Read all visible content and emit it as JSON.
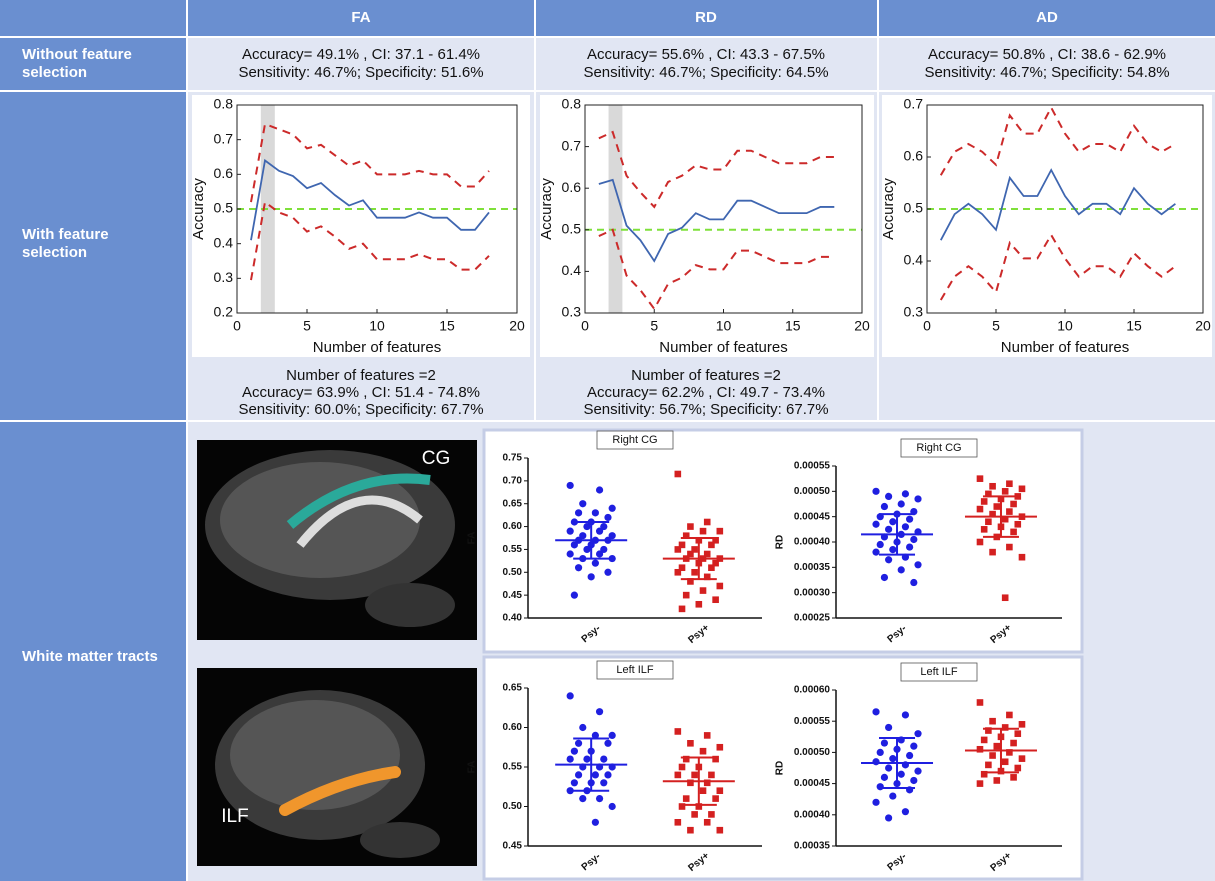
{
  "table": {
    "headers": [
      "FA",
      "RD",
      "AD"
    ],
    "row_labels": [
      "Without feature selection",
      "With feature selection",
      "White matter tracts"
    ],
    "without_selection": [
      [
        "Accuracy= 49.1% , CI: 37.1 - 61.4%",
        "Sensitivity: 46.7%; Specificity: 51.6%"
      ],
      [
        "Accuracy= 55.6% , CI: 43.3 - 67.5%",
        "Sensitivity: 46.7%; Specificity: 64.5%"
      ],
      [
        "Accuracy= 50.8% , CI: 38.6 - 62.9%",
        "Sensitivity: 46.7%; Specificity: 54.8%"
      ]
    ],
    "with_selection_notes": [
      [
        "Number of features =2",
        "Accuracy= 63.9% , CI: 51.4 - 74.8%",
        "Sensitivity: 60.0%; Specificity: 67.7%"
      ],
      [
        "Number of features =2",
        "Accuracy= 62.2% , CI: 49.7 - 73.4%",
        "Sensitivity: 56.7%; Specificity: 67.7%"
      ]
    ]
  },
  "line_charts": [
    {
      "type": "line",
      "xlabel": "Number of features",
      "ylabel": "Accuracy",
      "xlim": [
        0,
        20
      ],
      "ylim": [
        0.2,
        0.8
      ],
      "xticks": [
        0,
        5,
        10,
        15,
        20
      ],
      "yticks": [
        0.2,
        0.3,
        0.4,
        0.5,
        0.6,
        0.7,
        0.8
      ],
      "x": [
        1,
        2,
        3,
        4,
        5,
        6,
        7,
        8,
        9,
        10,
        11,
        12,
        13,
        14,
        15,
        16,
        17,
        18
      ],
      "reference_line": 0.5,
      "reference_color": "#7fe03a",
      "shade": [
        1.7,
        2.7
      ],
      "series": [
        {
          "color": "#3f66b0",
          "dashed": false,
          "values": [
            0.41,
            0.64,
            0.61,
            0.595,
            0.56,
            0.575,
            0.54,
            0.51,
            0.525,
            0.475,
            0.475,
            0.475,
            0.49,
            0.475,
            0.475,
            0.44,
            0.44,
            0.49
          ]
        },
        {
          "color": "#cc2a2a",
          "dashed": true,
          "values": [
            0.52,
            0.745,
            0.73,
            0.715,
            0.675,
            0.685,
            0.655,
            0.625,
            0.64,
            0.6,
            0.6,
            0.6,
            0.61,
            0.6,
            0.6,
            0.565,
            0.565,
            0.61
          ]
        },
        {
          "color": "#cc2a2a",
          "dashed": true,
          "values": [
            0.295,
            0.52,
            0.49,
            0.475,
            0.435,
            0.45,
            0.42,
            0.385,
            0.4,
            0.355,
            0.355,
            0.355,
            0.37,
            0.355,
            0.355,
            0.325,
            0.325,
            0.365
          ]
        }
      ]
    },
    {
      "type": "line",
      "xlabel": "Number of features",
      "ylabel": "Accuracy",
      "xlim": [
        0,
        20
      ],
      "ylim": [
        0.3,
        0.8
      ],
      "xticks": [
        0,
        5,
        10,
        15,
        20
      ],
      "yticks": [
        0.3,
        0.4,
        0.5,
        0.6,
        0.7,
        0.8
      ],
      "x": [
        1,
        2,
        3,
        4,
        5,
        6,
        7,
        8,
        9,
        10,
        11,
        12,
        13,
        14,
        15,
        16,
        17,
        18
      ],
      "reference_line": 0.5,
      "reference_color": "#7fe03a",
      "shade": [
        1.7,
        2.7
      ],
      "series": [
        {
          "color": "#3f66b0",
          "dashed": false,
          "values": [
            0.61,
            0.62,
            0.51,
            0.475,
            0.425,
            0.49,
            0.505,
            0.54,
            0.525,
            0.525,
            0.57,
            0.57,
            0.555,
            0.54,
            0.54,
            0.54,
            0.555,
            0.555
          ]
        },
        {
          "color": "#cc2a2a",
          "dashed": true,
          "values": [
            0.72,
            0.735,
            0.63,
            0.59,
            0.555,
            0.615,
            0.63,
            0.655,
            0.645,
            0.645,
            0.69,
            0.69,
            0.675,
            0.66,
            0.66,
            0.66,
            0.675,
            0.675
          ]
        },
        {
          "color": "#cc2a2a",
          "dashed": true,
          "values": [
            0.485,
            0.5,
            0.39,
            0.355,
            0.31,
            0.37,
            0.385,
            0.415,
            0.405,
            0.405,
            0.45,
            0.45,
            0.435,
            0.42,
            0.42,
            0.42,
            0.435,
            0.435
          ]
        }
      ]
    },
    {
      "type": "line",
      "xlabel": "Number of features",
      "ylabel": "Accuracy",
      "xlim": [
        0,
        20
      ],
      "ylim": [
        0.3,
        0.7
      ],
      "xticks": [
        0,
        5,
        10,
        15,
        20
      ],
      "yticks": [
        0.3,
        0.4,
        0.5,
        0.6,
        0.7
      ],
      "x": [
        1,
        2,
        3,
        4,
        5,
        6,
        7,
        8,
        9,
        10,
        11,
        12,
        13,
        14,
        15,
        16,
        17,
        18
      ],
      "reference_line": 0.5,
      "reference_color": "#7fe03a",
      "series": [
        {
          "color": "#3f66b0",
          "dashed": false,
          "values": [
            0.44,
            0.49,
            0.51,
            0.49,
            0.46,
            0.56,
            0.525,
            0.525,
            0.575,
            0.525,
            0.49,
            0.51,
            0.51,
            0.49,
            0.54,
            0.51,
            0.49,
            0.51
          ]
        },
        {
          "color": "#cc2a2a",
          "dashed": true,
          "values": [
            0.565,
            0.61,
            0.625,
            0.61,
            0.585,
            0.68,
            0.645,
            0.645,
            0.695,
            0.645,
            0.61,
            0.625,
            0.625,
            0.61,
            0.66,
            0.625,
            0.61,
            0.625
          ]
        },
        {
          "color": "#cc2a2a",
          "dashed": true,
          "values": [
            0.325,
            0.37,
            0.39,
            0.37,
            0.34,
            0.435,
            0.405,
            0.405,
            0.45,
            0.405,
            0.37,
            0.39,
            0.39,
            0.37,
            0.415,
            0.39,
            0.37,
            0.39
          ]
        }
      ]
    }
  ],
  "brain_images": [
    {
      "label": "CG"
    },
    {
      "label": "ILF"
    }
  ],
  "scatter_plots": [
    {
      "type": "dot",
      "title": "Right CG",
      "ylabel": "FA",
      "categories": [
        "Psy-",
        "Psy+"
      ],
      "ylim": [
        0.4,
        0.75
      ],
      "yticks": [
        {
          "value": 0.4,
          "label": "0.40"
        },
        0.45,
        {
          "value": 0.5,
          "label": "0.50"
        },
        0.55,
        {
          "value": 0.6,
          "label": "0.60"
        },
        0.65,
        {
          "value": 0.7,
          "label": "0.70"
        },
        0.75
      ],
      "groups": [
        {
          "color": "#1f1fe0",
          "marker": "circle",
          "mean": 0.57,
          "sd": 0.04,
          "values": [
            0.69,
            0.68,
            0.65,
            0.64,
            0.63,
            0.63,
            0.62,
            0.61,
            0.61,
            0.6,
            0.6,
            0.59,
            0.59,
            0.58,
            0.58,
            0.57,
            0.57,
            0.57,
            0.56,
            0.56,
            0.55,
            0.55,
            0.54,
            0.54,
            0.53,
            0.53,
            0.52,
            0.51,
            0.5,
            0.49,
            0.45
          ]
        },
        {
          "color": "#d42020",
          "marker": "square",
          "mean": 0.53,
          "sd": 0.045,
          "values": [
            0.715,
            0.61,
            0.6,
            0.59,
            0.59,
            0.58,
            0.57,
            0.57,
            0.56,
            0.56,
            0.55,
            0.55,
            0.54,
            0.54,
            0.53,
            0.53,
            0.53,
            0.52,
            0.52,
            0.51,
            0.51,
            0.5,
            0.5,
            0.49,
            0.48,
            0.47,
            0.46,
            0.45,
            0.44,
            0.43,
            0.42
          ]
        }
      ]
    },
    {
      "type": "dot",
      "title": "Right CG",
      "ylabel": "RD",
      "categories": [
        "Psy-",
        "Psy+"
      ],
      "ylim": [
        0.00025,
        0.00055
      ],
      "yticks": [
        0.00025,
        {
          "value": 0.0003,
          "label": "0.00030"
        },
        0.00035,
        {
          "value": 0.0004,
          "label": "0.00040"
        },
        0.00045,
        {
          "value": 0.0005,
          "label": "0.00050"
        },
        0.00055
      ],
      "groups": [
        {
          "color": "#1f1fe0",
          "marker": "circle",
          "mean": 0.000415,
          "sd": 4e-05,
          "values": [
            0.0005,
            0.000495,
            0.00049,
            0.000485,
            0.000475,
            0.00047,
            0.00046,
            0.000455,
            0.00045,
            0.000445,
            0.00044,
            0.000435,
            0.00043,
            0.000425,
            0.00042,
            0.000415,
            0.00041,
            0.000405,
            0.0004,
            0.000395,
            0.00039,
            0.000385,
            0.00038,
            0.00037,
            0.000365,
            0.000355,
            0.000345,
            0.00033,
            0.00032
          ]
        },
        {
          "color": "#d42020",
          "marker": "square",
          "mean": 0.00045,
          "sd": 4e-05,
          "values": [
            0.000525,
            0.000515,
            0.00051,
            0.000505,
            0.0005,
            0.000495,
            0.00049,
            0.000485,
            0.00048,
            0.000475,
            0.00047,
            0.000465,
            0.00046,
            0.000455,
            0.00045,
            0.000445,
            0.00044,
            0.000435,
            0.00043,
            0.000425,
            0.00042,
            0.00041,
            0.0004,
            0.00039,
            0.00038,
            0.00037,
            0.00029
          ]
        }
      ]
    },
    {
      "type": "dot",
      "title": "Left ILF",
      "ylabel": "FA",
      "categories": [
        "Psy-",
        "Psy+"
      ],
      "ylim": [
        0.45,
        0.65
      ],
      "yticks": [
        0.45,
        {
          "value": 0.5,
          "label": "0.50"
        },
        0.55,
        {
          "value": 0.6,
          "label": "0.60"
        },
        0.65
      ],
      "groups": [
        {
          "color": "#1f1fe0",
          "marker": "circle",
          "mean": 0.553,
          "sd": 0.033,
          "values": [
            0.64,
            0.62,
            0.6,
            0.59,
            0.59,
            0.58,
            0.58,
            0.57,
            0.57,
            0.56,
            0.56,
            0.56,
            0.55,
            0.55,
            0.55,
            0.54,
            0.54,
            0.54,
            0.53,
            0.53,
            0.53,
            0.52,
            0.52,
            0.51,
            0.51,
            0.5,
            0.48
          ]
        },
        {
          "color": "#d42020",
          "marker": "square",
          "mean": 0.532,
          "sd": 0.03,
          "values": [
            0.595,
            0.59,
            0.58,
            0.575,
            0.57,
            0.56,
            0.56,
            0.55,
            0.55,
            0.54,
            0.54,
            0.54,
            0.53,
            0.53,
            0.52,
            0.52,
            0.51,
            0.51,
            0.5,
            0.5,
            0.49,
            0.49,
            0.48,
            0.48,
            0.47,
            0.47
          ]
        }
      ]
    },
    {
      "type": "dot",
      "title": "Left ILF",
      "ylabel": "RD",
      "categories": [
        "Psy-",
        "Psy+"
      ],
      "ylim": [
        0.00035,
        0.0006
      ],
      "yticks": [
        0.00035,
        {
          "value": 0.0004,
          "label": "0.00040"
        },
        0.00045,
        {
          "value": 0.0005,
          "label": "0.00050"
        },
        0.00055,
        {
          "value": 0.0006,
          "label": "0.00060"
        }
      ],
      "groups": [
        {
          "color": "#1f1fe0",
          "marker": "circle",
          "mean": 0.000483,
          "sd": 4e-05,
          "values": [
            0.000565,
            0.00056,
            0.00054,
            0.00053,
            0.00052,
            0.000515,
            0.00051,
            0.000505,
            0.0005,
            0.000495,
            0.00049,
            0.000485,
            0.00048,
            0.000475,
            0.00047,
            0.000465,
            0.00046,
            0.000455,
            0.00045,
            0.000445,
            0.00044,
            0.00043,
            0.00042,
            0.000405,
            0.000395
          ]
        },
        {
          "color": "#d42020",
          "marker": "square",
          "mean": 0.000503,
          "sd": 3.5e-05,
          "values": [
            0.00058,
            0.00056,
            0.00055,
            0.000545,
            0.00054,
            0.000535,
            0.00053,
            0.000525,
            0.00052,
            0.000515,
            0.00051,
            0.000505,
            0.0005,
            0.000495,
            0.00049,
            0.000485,
            0.00048,
            0.000475,
            0.00047,
            0.000465,
            0.00046,
            0.000455,
            0.00045
          ]
        }
      ]
    }
  ]
}
